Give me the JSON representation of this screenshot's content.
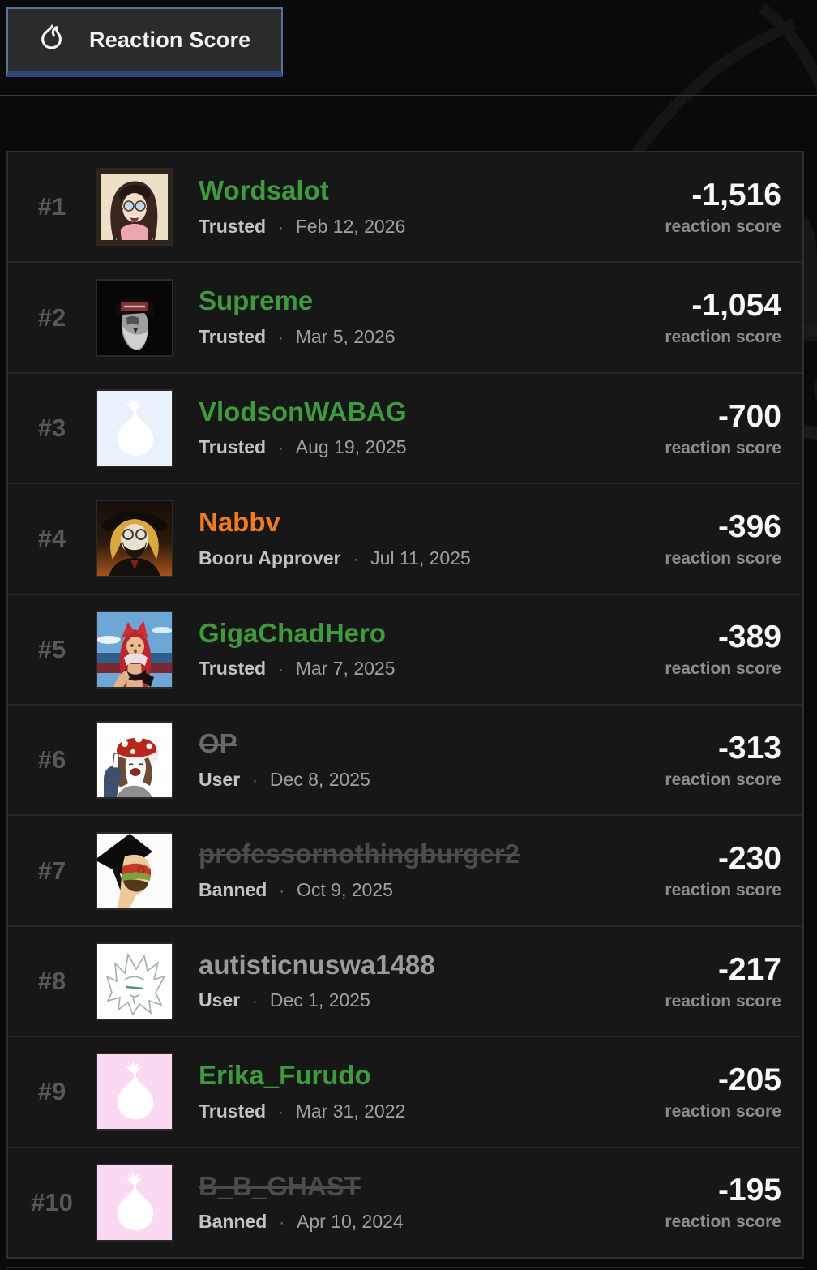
{
  "header": {
    "button_label": "Reaction Score",
    "button_icon": "flame-icon",
    "button_border_color": "#54739f",
    "button_bg": "#2b2b2b"
  },
  "leaderboard": {
    "score_label": "reaction score",
    "separator": "·",
    "name_colors": {
      "green": "#3d9b3d",
      "orange": "#ef7b1f",
      "gray": "#9b9b9b",
      "struck": "#4c4c4c"
    },
    "rows": [
      {
        "rank": "#1",
        "username": "Wordsalot",
        "style": "green",
        "role": "Trusted",
        "date": "Feb 12, 2026",
        "score": "-1,516",
        "avatar": "wordsalot"
      },
      {
        "rank": "#2",
        "username": "Supreme",
        "style": "green",
        "role": "Trusted",
        "date": "Mar 5, 2026",
        "score": "-1,054",
        "avatar": "supreme"
      },
      {
        "rank": "#3",
        "username": "VlodsonWABAG",
        "style": "green",
        "role": "Trusted",
        "date": "Aug 19, 2025",
        "score": "-700",
        "avatar": "onion-blue"
      },
      {
        "rank": "#4",
        "username": "Nabbv",
        "style": "orange",
        "role": "Booru Approver",
        "date": "Jul 11, 2025",
        "score": "-396",
        "avatar": "nabbv"
      },
      {
        "rank": "#5",
        "username": "GigaChadHero",
        "style": "green",
        "role": "Trusted",
        "date": "Mar 7, 2025",
        "score": "-389",
        "avatar": "gigachad"
      },
      {
        "rank": "#6",
        "username": "OP",
        "style": "struck-light",
        "role": "User",
        "date": "Dec 8, 2025",
        "score": "-313",
        "avatar": "mushroom"
      },
      {
        "rank": "#7",
        "username": "professornothingburger2",
        "style": "struck",
        "role": "Banned",
        "date": "Oct 9, 2025",
        "score": "-230",
        "avatar": "professor"
      },
      {
        "rank": "#8",
        "username": "autisticnuswa1488",
        "style": "gray",
        "role": "User",
        "date": "Dec 1, 2025",
        "score": "-217",
        "avatar": "sketch"
      },
      {
        "rank": "#9",
        "username": "Erika_Furudo",
        "style": "green",
        "role": "Trusted",
        "date": "Mar 31, 2022",
        "score": "-205",
        "avatar": "onion-pink"
      },
      {
        "rank": "#10",
        "username": "B_B_GHAST",
        "style": "struck",
        "role": "Banned",
        "date": "Apr 10, 2024",
        "score": "-195",
        "avatar": "onion-pink"
      }
    ]
  }
}
